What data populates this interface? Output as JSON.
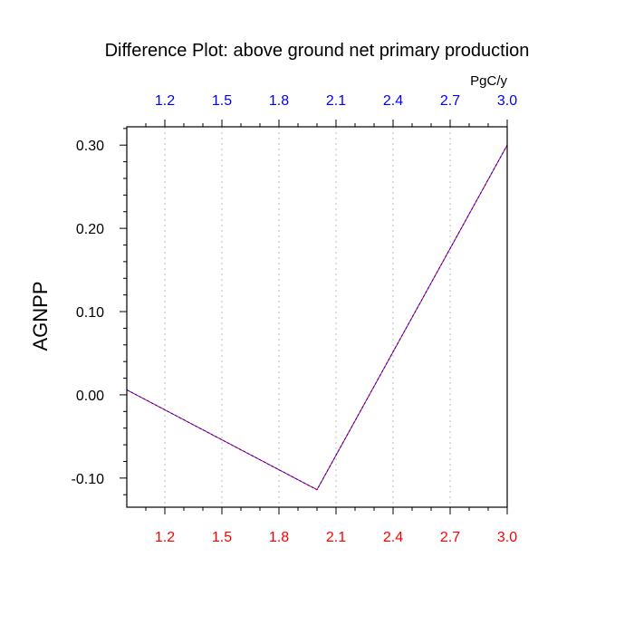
{
  "chart_data": {
    "type": "line",
    "title": "Difference Plot: above ground net primary production",
    "ylabel": "AGNPP",
    "top_axis_unit": "PgC/y",
    "xlim": [
      1.0,
      3.0
    ],
    "ylim": [
      -0.135,
      0.322
    ],
    "x_ticks": [
      "1.2",
      "1.5",
      "1.8",
      "2.1",
      "2.4",
      "2.7",
      "3.0"
    ],
    "x_tick_values": [
      1.2,
      1.5,
      1.8,
      2.1,
      2.4,
      2.7,
      3.0
    ],
    "y_ticks": [
      "0.30",
      "0.20",
      "0.10",
      "0.00",
      "-0.10"
    ],
    "y_tick_values": [
      0.3,
      0.2,
      0.1,
      0.0,
      -0.1
    ],
    "grid": "vertical dotted",
    "colors": {
      "bottom_tick_labels": "#ff0000",
      "top_tick_labels": "#0000ff",
      "line_primary": "#ff0000",
      "line_secondary": "#0000ff",
      "axis": "#000000",
      "grid": "#bbbbbb"
    },
    "series": [
      {
        "x": [
          1.0,
          2.0,
          3.0
        ],
        "y": [
          0.006,
          -0.114,
          0.3
        ]
      }
    ]
  }
}
